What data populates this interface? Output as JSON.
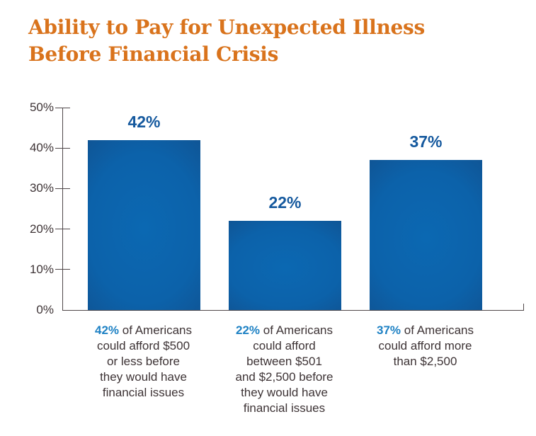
{
  "title": {
    "line1": "Ability to Pay for Unexpected Illness",
    "line2": "Before Financial Crisis",
    "color": "#d9731c"
  },
  "chart_data": {
    "type": "bar",
    "title": "Ability to Pay for Unexpected Illness Before Financial Crisis",
    "values": [
      42,
      22,
      37
    ],
    "value_labels": [
      "42%",
      "22%",
      "37%"
    ],
    "categories": [
      "42% of Americans could afford $500 or less before they would have financial issues",
      "22% of Americans could afford between $501 and $2,500 before they would have financial issues",
      "37% of Americans could afford more than $2,500"
    ],
    "captions": [
      {
        "pct": "42%",
        "rest": " of Americans\ncould afford $500\nor less before\nthey would have\nfinancial issues"
      },
      {
        "pct": "22%",
        "rest": " of Americans\ncould afford\nbetween $501\nand $2,500 before\nthey would have\nfinancial issues"
      },
      {
        "pct": "37%",
        "rest": " of Americans\ncould afford more\nthan $2,500"
      }
    ],
    "yticks": [
      "0%",
      "10%",
      "20%",
      "30%",
      "40%",
      "50%"
    ],
    "ytick_values": [
      0,
      10,
      20,
      30,
      40,
      50
    ],
    "ylim": [
      0,
      50
    ],
    "xlabel": "",
    "ylabel": "",
    "grid": false,
    "legend": false,
    "colors": {
      "bar_center": "#0b68b2",
      "bar_edge": "#114f8c",
      "value_label": "#15599e",
      "axis": "#4f4749",
      "caption_pct": "#1d81c4",
      "caption_text": "#3d3335",
      "title": "#d9731c"
    }
  }
}
